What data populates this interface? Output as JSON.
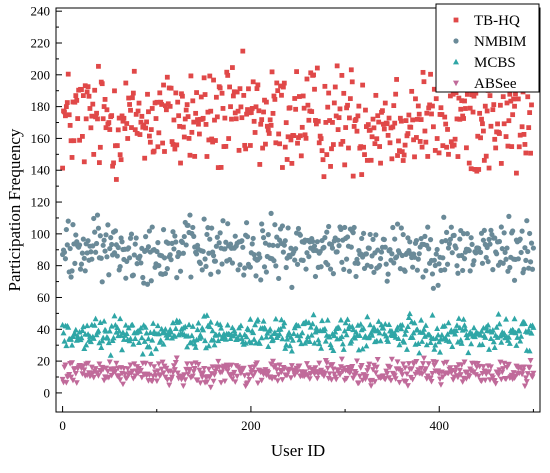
{
  "chart_data": {
    "type": "scatter",
    "title": "",
    "xlabel": "User ID",
    "ylabel": "Participation Frequency",
    "xlim": [
      -7,
      507
    ],
    "ylim": [
      -12,
      242
    ],
    "x_ticks": [
      0,
      200,
      400
    ],
    "y_ticks": [
      0,
      20,
      40,
      60,
      80,
      100,
      120,
      140,
      160,
      180,
      200,
      220,
      240
    ],
    "x_tick_labels": [
      "0",
      "200",
      "400"
    ],
    "y_tick_labels": [
      "0",
      "20",
      "40",
      "60",
      "80",
      "100",
      "120",
      "140",
      "160",
      "180",
      "200",
      "220",
      "240"
    ],
    "legend_position": "top-right",
    "x_range_per_series": [
      0,
      500
    ],
    "series": [
      {
        "name": "TB-HQ",
        "marker": "square",
        "color": "#e04848",
        "y_range": [
          122,
          222
        ],
        "y_center": 167,
        "n_points": 500
      },
      {
        "name": "NMBIM",
        "marker": "circle",
        "color": "#6a8a98",
        "y_range": [
          62,
          118
        ],
        "y_center": 90,
        "n_points": 500
      },
      {
        "name": "MCBS",
        "marker": "triangle-up",
        "color": "#2fa6a6",
        "y_range": [
          22,
          52
        ],
        "y_center": 35,
        "n_points": 500
      },
      {
        "name": "ABSee",
        "marker": "triangle-down",
        "color": "#c06a9a",
        "y_range": [
          2,
          24
        ],
        "y_center": 14,
        "n_points": 500
      }
    ]
  }
}
